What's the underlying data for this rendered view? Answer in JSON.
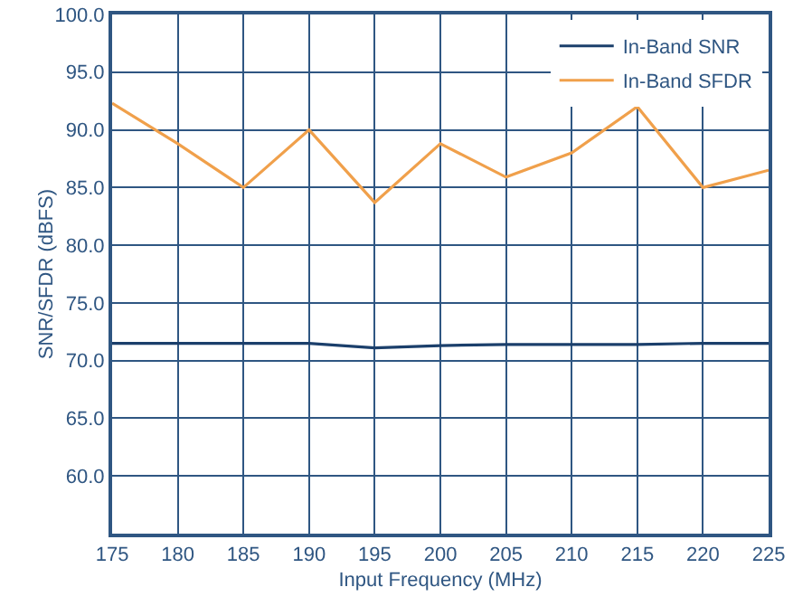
{
  "chart_data": {
    "type": "line",
    "xlabel": "Input Frequency (MHz)",
    "ylabel": "SNR/SFDR (dBFS)",
    "x": [
      175,
      180,
      185,
      190,
      195,
      200,
      205,
      210,
      215,
      220,
      225
    ],
    "series": [
      {
        "name": "In-Band SNR",
        "color": "#1b3f6b",
        "values": [
          71.5,
          71.5,
          71.5,
          71.5,
          71.1,
          71.3,
          71.4,
          71.4,
          71.4,
          71.5,
          71.5
        ]
      },
      {
        "name": "In-Band SFDR",
        "color": "#f0a04b",
        "values": [
          92.3,
          88.8,
          85,
          90,
          83.7,
          88.8,
          85.9,
          88,
          92,
          85,
          86.5
        ]
      }
    ],
    "xlim": [
      175,
      225
    ],
    "xticks": [
      175,
      180,
      185,
      190,
      195,
      200,
      205,
      210,
      215,
      220,
      225
    ],
    "ylim": [
      55,
      100
    ],
    "yticks": [
      {
        "value": 55,
        "label": null
      },
      {
        "value": 60,
        "label": "60.0"
      },
      {
        "value": 65,
        "label": "65.0"
      },
      {
        "value": 70,
        "label": "70.0"
      },
      {
        "value": 75,
        "label": "75.0"
      },
      {
        "value": 80,
        "label": "80.0"
      },
      {
        "value": 85,
        "label": "85.0"
      },
      {
        "value": 90,
        "label": "90.0"
      },
      {
        "value": 95,
        "label": "95.0"
      },
      {
        "value": 100,
        "label": "100.0"
      }
    ],
    "grid": true,
    "legend": "top right",
    "marker": "none",
    "line_style": "solid"
  }
}
